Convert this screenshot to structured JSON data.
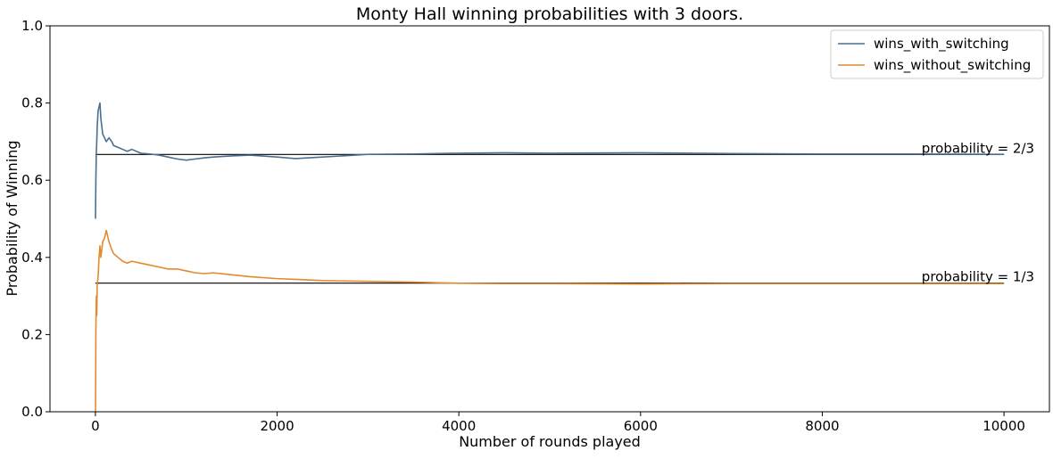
{
  "chart_data": {
    "type": "line",
    "title": "Monty Hall winning probabilities with 3 doors.",
    "xlabel": "Number of rounds played",
    "ylabel": "Probability of Winning",
    "xlim": [
      -500,
      10500
    ],
    "ylim": [
      0.0,
      1.0
    ],
    "xticks": [
      0,
      2000,
      4000,
      6000,
      8000,
      10000
    ],
    "xtick_labels": [
      "0",
      "2000",
      "4000",
      "6000",
      "8000",
      "10000"
    ],
    "yticks": [
      0.0,
      0.2,
      0.4,
      0.6,
      0.8,
      1.0
    ],
    "ytick_labels": [
      "0.0",
      "0.2",
      "0.4",
      "0.6",
      "0.8",
      "1.0"
    ],
    "grid": false,
    "legend_position": "top-right",
    "series": [
      {
        "name": "wins_with_switching",
        "color": "#4a6f8f",
        "x": [
          1,
          5,
          10,
          15,
          20,
          30,
          40,
          50,
          60,
          70,
          80,
          100,
          120,
          150,
          180,
          200,
          250,
          300,
          350,
          400,
          500,
          600,
          700,
          800,
          900,
          1000,
          1100,
          1200,
          1300,
          1500,
          1700,
          2000,
          2200,
          2500,
          3000,
          3500,
          4000,
          4500,
          5000,
          6000,
          7000,
          8000,
          9000,
          10000
        ],
        "y": [
          0.5,
          0.6,
          0.67,
          0.7,
          0.74,
          0.78,
          0.79,
          0.8,
          0.76,
          0.74,
          0.72,
          0.71,
          0.7,
          0.71,
          0.7,
          0.69,
          0.685,
          0.68,
          0.675,
          0.68,
          0.67,
          0.668,
          0.665,
          0.66,
          0.655,
          0.652,
          0.655,
          0.658,
          0.66,
          0.663,
          0.665,
          0.66,
          0.656,
          0.66,
          0.667,
          0.668,
          0.67,
          0.671,
          0.67,
          0.671,
          0.669,
          0.668,
          0.668,
          0.667
        ]
      },
      {
        "name": "wins_without_switching",
        "color": "#e38a2f",
        "x": [
          1,
          5,
          10,
          15,
          20,
          30,
          40,
          50,
          60,
          70,
          80,
          100,
          120,
          150,
          180,
          200,
          250,
          300,
          350,
          400,
          500,
          600,
          700,
          800,
          900,
          1000,
          1100,
          1200,
          1300,
          1500,
          1700,
          2000,
          2200,
          2500,
          3000,
          3500,
          4000,
          4500,
          5000,
          6000,
          7000,
          8000,
          9000,
          10000
        ],
        "y": [
          0.0,
          0.2,
          0.3,
          0.25,
          0.33,
          0.35,
          0.4,
          0.43,
          0.4,
          0.42,
          0.44,
          0.45,
          0.47,
          0.44,
          0.42,
          0.41,
          0.4,
          0.39,
          0.385,
          0.39,
          0.385,
          0.38,
          0.375,
          0.37,
          0.37,
          0.365,
          0.36,
          0.358,
          0.36,
          0.355,
          0.35,
          0.345,
          0.343,
          0.34,
          0.338,
          0.336,
          0.333,
          0.332,
          0.332,
          0.331,
          0.332,
          0.332,
          0.332,
          0.332
        ]
      }
    ],
    "reference_lines": [
      {
        "y": 0.6667,
        "x_start": 0,
        "x_end": 10000,
        "color": "#000000",
        "label": "probability = 2/3"
      },
      {
        "y": 0.3333,
        "x_start": 0,
        "x_end": 10000,
        "color": "#000000",
        "label": "probability = 1/3"
      }
    ]
  }
}
